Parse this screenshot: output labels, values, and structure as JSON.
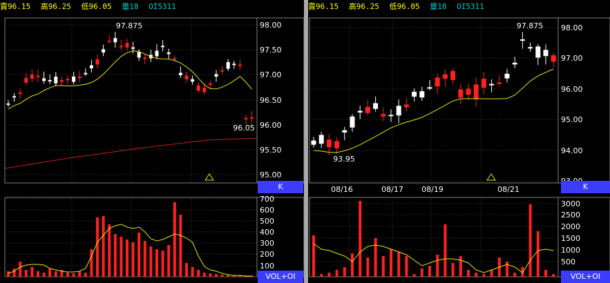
{
  "left_panel": {
    "header": {
      "sell": "賣96.15",
      "high": "高96.25",
      "low": "低96.05",
      "volume": "量18",
      "oi": "OI5311"
    },
    "price_axis_ticks": [
      "98.00",
      "97.50",
      "97.00",
      "96.50",
      "96.00",
      "95.50",
      "95.00"
    ],
    "vol_axis_ticks": [
      "700",
      "600",
      "500",
      "400",
      "300",
      "200",
      "100",
      "0"
    ],
    "high_label": "97.875",
    "low_label": "96.05",
    "price_tab": "K",
    "vol_tab": "VOL+OI"
  },
  "right_panel": {
    "header": {
      "sell": "賣96.15",
      "high": "高96.25",
      "low": "低96.05",
      "volume": "量18",
      "oi": "OI5311"
    },
    "price_axis_ticks": [
      "98.00",
      "97.00",
      "96.00",
      "95.00",
      "94.00",
      "93.00"
    ],
    "vol_axis_ticks": [
      "3000",
      "2500",
      "2000",
      "1500",
      "1000",
      "500"
    ],
    "high_label": "97.875",
    "low_label": "93.95",
    "date_labels": [
      "08/16",
      "08/17",
      "08/19",
      "08/21"
    ],
    "price_tab": "K",
    "vol_tab": "VOL+OI"
  },
  "colors": {
    "up": "#ff2020",
    "down": "#ffffff",
    "ma": "#e6e600",
    "long_ma": "#c81e1e",
    "grid": "#3a3a3a",
    "tab_bg": "#3c3cff",
    "hi_lo_label": "#ff4040"
  }
}
